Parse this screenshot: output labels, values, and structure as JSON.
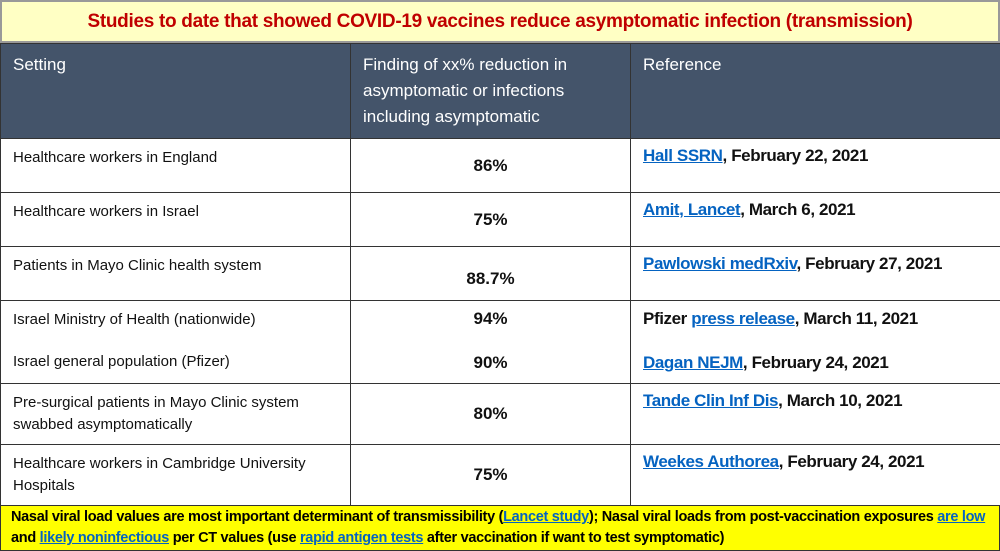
{
  "title": "Studies to date that showed COVID-19 vaccines reduce asymptomatic infection (transmission)",
  "headers": [
    "Setting",
    "Finding of xx% reduction in asymptomatic or infections including asymptomatic",
    "Reference"
  ],
  "rows": [
    {
      "setting": "Healthcare workers in England",
      "pct": "86%",
      "link": "Hall SSRN",
      "rest": ", February 22, 2021"
    },
    {
      "setting": "Healthcare workers in Israel",
      "pct": "75%",
      "link": "Amit, Lancet",
      "rest": ", March 6, 2021"
    },
    {
      "setting": "Patients in Mayo Clinic health system",
      "pct": "88.7%",
      "link": "Pawlowski medRxiv",
      "rest": ", February 27, 2021"
    },
    {
      "setting": "Israel Ministry of Health (nationwide)",
      "pct": "94%",
      "pre": "Pfizer ",
      "link": "press release",
      "rest": ", March 11, 2021"
    },
    {
      "setting": "Israel general population (Pfizer)",
      "pct": "90%",
      "link": "Dagan NEJM",
      "rest": ", February 24, 2021"
    },
    {
      "setting": "Pre-surgical patients in Mayo Clinic system swabbed asymptomatically",
      "pct": "80%",
      "link": "Tande Clin Inf Dis",
      "rest": ", March 10, 2021"
    },
    {
      "setting": "Healthcare workers in Cambridge University Hospitals",
      "pct": "75%",
      "link": "Weekes Authorea",
      "rest": ", February 24, 2021"
    }
  ],
  "footer": {
    "t1": "Nasal viral load values are most important determinant of transmissibility (",
    "l1": "Lancet study",
    "t2": "); Nasal viral loads from post-vaccination exposures ",
    "l2": "are low",
    "t3": " and ",
    "l3": "likely noninfectious",
    "t4": " per CT values (use ",
    "l4": "rapid antigen tests",
    "t5": " after vaccination if want to test symptomatic)"
  }
}
